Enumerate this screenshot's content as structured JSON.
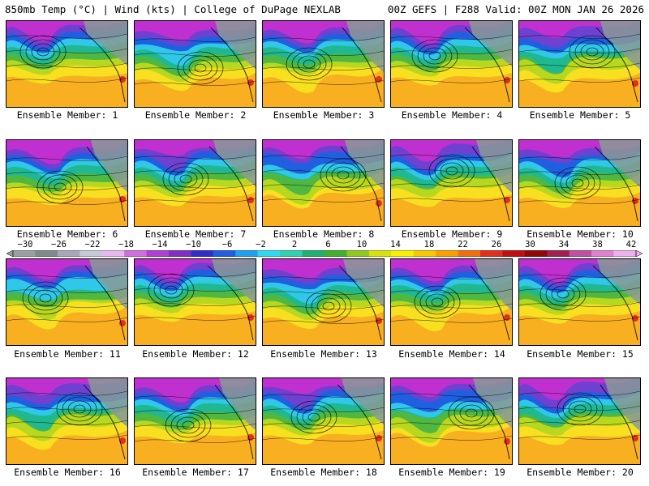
{
  "header": {
    "left": "850mb Temp (°C) | Wind (kts) | College of DuPage NEXLAB",
    "right": "00Z GEFS | F288 Valid: 00Z MON JAN 26 2026"
  },
  "member_label_prefix": "Ensemble Member:",
  "members": [
    1,
    2,
    3,
    4,
    5,
    6,
    7,
    8,
    9,
    10,
    11,
    12,
    13,
    14,
    15,
    16,
    17,
    18,
    19,
    20
  ],
  "colorbar": {
    "ticks": [
      "-30",
      "-26",
      "-22",
      "-18",
      "-14",
      "-10",
      "-6",
      "-2",
      "2",
      "6",
      "10",
      "14",
      "18",
      "22",
      "26",
      "30",
      "34",
      "38",
      "42"
    ],
    "colors": [
      "#9aa0a0",
      "#7f8a8a",
      "#a8a8b8",
      "#c8c8d8",
      "#e6b8ee",
      "#d070e0",
      "#b040d0",
      "#8030c0",
      "#3030c8",
      "#2060e0",
      "#20a0f0",
      "#30d8f0",
      "#30d0b0",
      "#20b070",
      "#40b030",
      "#90c820",
      "#d8e010",
      "#f8f000",
      "#f8c800",
      "#f8a000",
      "#f07010",
      "#e03020",
      "#c01010",
      "#900808",
      "#a02050",
      "#c050a0",
      "#e080d0",
      "#f0b0f0"
    ]
  },
  "map_colors": {
    "land_cold": "#8a9a96",
    "purple": "#c030d0",
    "violet": "#7040d0",
    "blue": "#2060e0",
    "cyan": "#30c8e8",
    "teal": "#20b890",
    "green": "#50b840",
    "lime": "#b8d820",
    "yellow": "#f8e020",
    "orange": "#f8b020",
    "red": "#e03020"
  }
}
